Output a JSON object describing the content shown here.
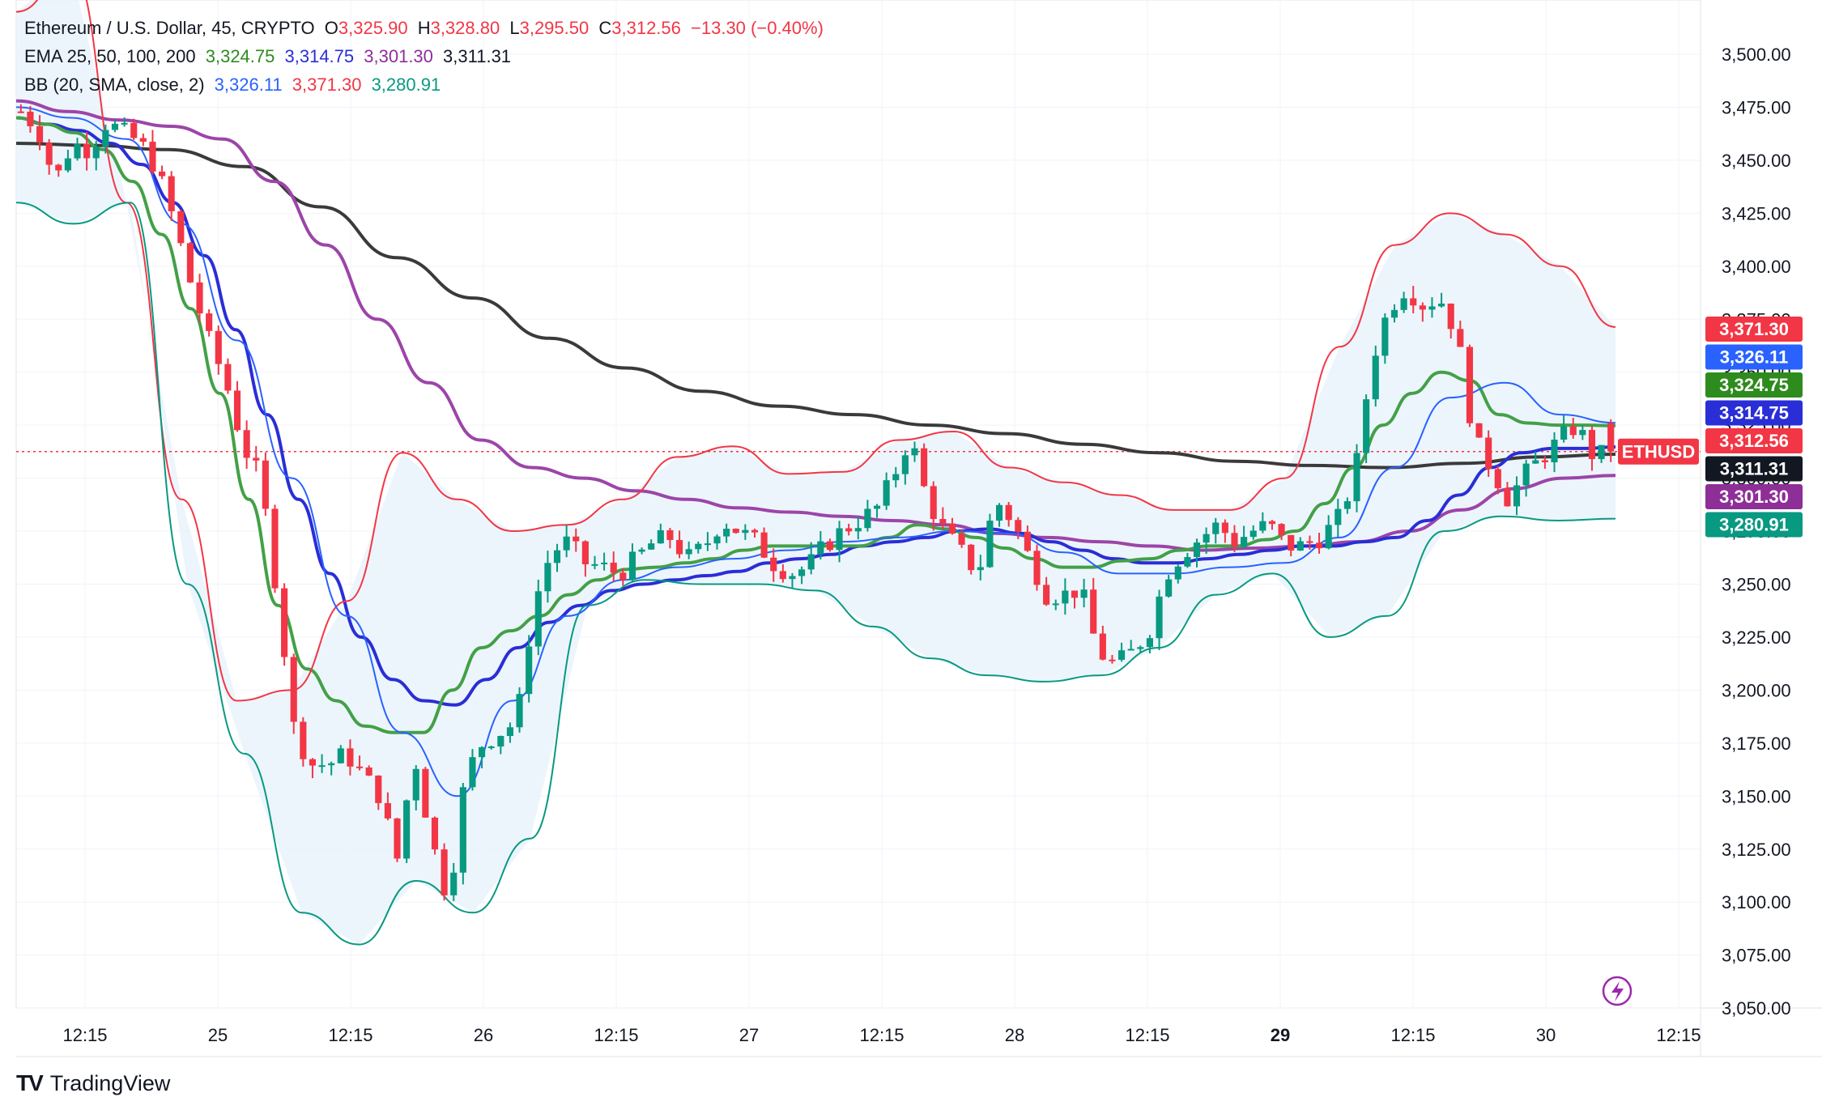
{
  "header": {
    "symbol_line": "Ethereum / U.S. Dollar, 45, CRYPTO",
    "ohlc": [
      {
        "label": "O",
        "value": "3,325.90"
      },
      {
        "label": "H",
        "value": "3,328.80"
      },
      {
        "label": "L",
        "value": "3,295.50"
      },
      {
        "label": "C",
        "value": "3,312.56"
      }
    ],
    "change": "−13.30 (−0.40%)",
    "ema_label": "EMA 25, 50, 100, 200",
    "ema_values": [
      "3,324.75",
      "3,314.75",
      "3,301.30",
      "3,311.31"
    ],
    "bb_label": "BB (20, SMA, close, 2)",
    "bb_values": [
      "3,326.11",
      "3,371.30",
      "3,280.91"
    ]
  },
  "brand": "TradingView",
  "symbol_tag": "ETHUSD",
  "colors": {
    "up": "#089981",
    "down": "#f23645",
    "ema25": "#43a047",
    "ema50": "#2a2ed6",
    "ema100": "#9c45a8",
    "ema200": "#3a3a3a",
    "bb_basis": "#2962ff",
    "bb_upper": "#f23645",
    "bb_lower": "#089981",
    "bb_fill": "#e9f3fb"
  },
  "chart_data": {
    "type": "candlestick",
    "y_ticks": [
      "3,500.00",
      "3,475.00",
      "3,450.00",
      "3,425.00",
      "3,400.00",
      "3,375.00",
      "3,350.00",
      "3,325.00",
      "3,300.00",
      "3,275.00",
      "3,250.00",
      "3,225.00",
      "3,200.00",
      "3,175.00",
      "3,150.00",
      "3,125.00",
      "3,100.00",
      "3,075.00",
      "3,050.00"
    ],
    "ylim": [
      3050,
      3510
    ],
    "x_labels": [
      "12:15",
      "25",
      "12:15",
      "26",
      "12:15",
      "27",
      "12:15",
      "28",
      "12:15",
      "29",
      "12:15",
      "30",
      "12:15"
    ],
    "price_tags": [
      {
        "value": 3371.3,
        "text": "3,371.30",
        "color": "#f23645"
      },
      {
        "value": 3326.11,
        "text": "3,326.11",
        "color": "#2962ff"
      },
      {
        "value": 3324.75,
        "text": "3,324.75",
        "color": "#2e8b1e"
      },
      {
        "value": 3314.75,
        "text": "3,314.75",
        "color": "#2a2ed6"
      },
      {
        "value": 3312.56,
        "text": "3,312.56",
        "color": "#f23645"
      },
      {
        "value": 3311.31,
        "text": "3,311.31",
        "color": "#131722"
      },
      {
        "value": 3301.3,
        "text": "3,301.30",
        "color": "#8e2f98"
      },
      {
        "value": 3280.91,
        "text": "3,280.91",
        "color": "#089981"
      }
    ],
    "last_price": 3312.56,
    "close_path": [
      3473,
      3465,
      3440,
      3458,
      3455,
      3468,
      3463,
      3458,
      3445,
      3420,
      3390,
      3365,
      3345,
      3315,
      3300,
      3245,
      3180,
      3165,
      3165,
      3170,
      3160,
      3150,
      3120,
      3170,
      3130,
      3100,
      3160,
      3175,
      3180,
      3185,
      3240,
      3265,
      3270,
      3260,
      3258,
      3255,
      3262,
      3270,
      3272,
      3262,
      3268,
      3280,
      3275,
      3270,
      3260,
      3255,
      3258,
      3268,
      3275,
      3280,
      3285,
      3300,
      3320,
      3290,
      3275,
      3265,
      3255,
      3290,
      3280,
      3262,
      3245,
      3245,
      3248,
      3218,
      3212,
      3218,
      3228,
      3255,
      3265,
      3272,
      3278,
      3270,
      3275,
      3278,
      3268,
      3268,
      3272,
      3280,
      3300,
      3355,
      3380,
      3390,
      3382,
      3385,
      3368,
      3318,
      3305,
      3290,
      3302,
      3310,
      3318,
      3325,
      3310,
      3312.56
    ],
    "ema25_path": [
      3470,
      3467,
      3463,
      3455,
      3440,
      3415,
      3380,
      3340,
      3290,
      3240,
      3210,
      3195,
      3183,
      3180,
      3180,
      3200,
      3220,
      3228,
      3235,
      3245,
      3252,
      3257,
      3258,
      3260,
      3262,
      3266,
      3268,
      3268,
      3268,
      3268,
      3272,
      3278,
      3276,
      3272,
      3267,
      3262,
      3258,
      3258,
      3261,
      3262,
      3266,
      3268,
      3268,
      3271,
      3275,
      3288,
      3305,
      3325,
      3340,
      3350,
      3346,
      3330,
      3326,
      3325,
      3325,
      3324.75
    ],
    "ema50_path": [
      3470,
      3467,
      3464,
      3458,
      3448,
      3430,
      3405,
      3370,
      3330,
      3290,
      3255,
      3225,
      3205,
      3195,
      3193,
      3205,
      3220,
      3232,
      3240,
      3247,
      3250,
      3252,
      3254,
      3256,
      3260,
      3262,
      3264,
      3268,
      3270,
      3272,
      3275,
      3276,
      3274,
      3270,
      3266,
      3262,
      3260,
      3260,
      3262,
      3264,
      3266,
      3268,
      3268,
      3270,
      3272,
      3280,
      3292,
      3305,
      3312,
      3314,
      3314,
      3314.75
    ],
    "ema100_path": [
      3478,
      3473,
      3469,
      3466,
      3460,
      3440,
      3410,
      3375,
      3345,
      3318,
      3305,
      3300,
      3294,
      3290,
      3286,
      3284,
      3282,
      3280,
      3278,
      3274,
      3272,
      3270,
      3268,
      3266,
      3267,
      3268,
      3270,
      3275,
      3285,
      3295,
      3300,
      3301.3
    ],
    "ema200_path": [
      3458,
      3457,
      3455,
      3447,
      3428,
      3404,
      3385,
      3366,
      3352,
      3341,
      3334,
      3330,
      3325,
      3321,
      3316,
      3312,
      3308,
      3306,
      3305,
      3307,
      3310,
      3311.31
    ],
    "bb_upper_path": [
      3520,
      3540,
      3430,
      3290,
      3195,
      3200,
      3242,
      3312,
      3290,
      3275,
      3278,
      3290,
      3310,
      3315,
      3302,
      3303,
      3318,
      3322,
      3305,
      3298,
      3292,
      3285,
      3285,
      3300,
      3362,
      3410,
      3425,
      3415,
      3400,
      3371.3
    ],
    "bb_lower_path": [
      3430,
      3420,
      3430,
      3250,
      3170,
      3095,
      3080,
      3110,
      3095,
      3130,
      3240,
      3252,
      3250,
      3250,
      3247,
      3230,
      3215,
      3207,
      3204,
      3207,
      3220,
      3245,
      3255,
      3225,
      3235,
      3275,
      3282,
      3280,
      3280.91
    ],
    "bb_basis_path": [
      3475,
      3470,
      3460,
      3420,
      3365,
      3300,
      3235,
      3180,
      3150,
      3195,
      3235,
      3252,
      3258,
      3262,
      3266,
      3270,
      3272,
      3275,
      3274,
      3265,
      3255,
      3255,
      3258,
      3260,
      3272,
      3305,
      3338,
      3345,
      3330,
      3326.11
    ]
  }
}
